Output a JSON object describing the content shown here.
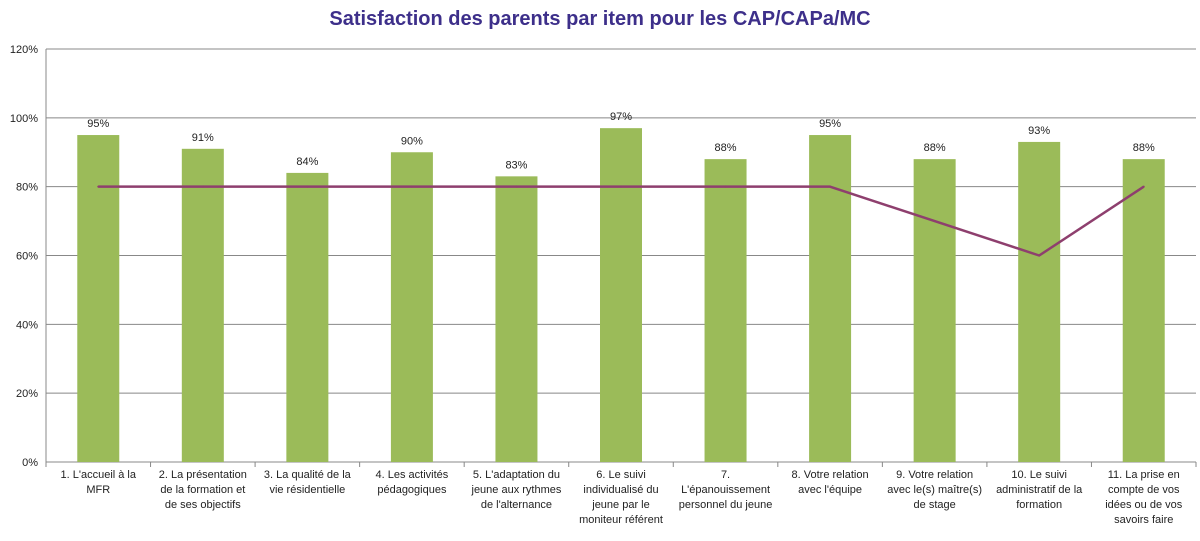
{
  "chart_data": {
    "type": "bar",
    "title": "Satisfaction des parents par item pour les CAP/CAPa/MC",
    "xlabel": "",
    "ylabel": "",
    "ylim": [
      0,
      120
    ],
    "yticks": [
      "0%",
      "20%",
      "40%",
      "60%",
      "80%",
      "100%",
      "120%"
    ],
    "ytick_values": [
      0,
      20,
      40,
      60,
      80,
      100,
      120
    ],
    "grid": true,
    "legend": "none",
    "colors": {
      "bars": "#9bbb59",
      "line": "#8e3f6e",
      "grid": "#888888",
      "title": "#3d2f8a"
    },
    "categories": [
      [
        "1. L'accueil à la",
        "MFR"
      ],
      [
        "2. La présentation",
        "de la formation et",
        "de ses objectifs"
      ],
      [
        "3. La qualité de la",
        "vie résidentielle"
      ],
      [
        "4. Les activités",
        "pédagogiques"
      ],
      [
        "5. L'adaptation du",
        "jeune aux rythmes",
        "de l'alternance"
      ],
      [
        "6. Le suivi",
        "individualisé du",
        "jeune par le",
        "moniteur référent"
      ],
      [
        "7.",
        "L'épanouissement",
        "personnel du jeune"
      ],
      [
        "8. Votre  relation",
        "avec l'équipe"
      ],
      [
        "9.  Votre relation",
        "avec le(s)  maître(s)",
        "de stage"
      ],
      [
        "10. Le suivi",
        "administratif de la",
        "formation"
      ],
      [
        "11. La prise en",
        "compte de vos",
        "idées ou de vos",
        "savoirs faire"
      ]
    ],
    "series": [
      {
        "kind": "bar",
        "values": [
          95,
          91,
          84,
          90,
          83,
          97,
          88,
          95,
          88,
          93,
          88
        ],
        "labels": [
          "95%",
          "91%",
          "84%",
          "90%",
          "83%",
          "97%",
          "88%",
          "95%",
          "88%",
          "93%",
          "88%"
        ]
      },
      {
        "kind": "line",
        "values": [
          80,
          80,
          80,
          80,
          80,
          80,
          80,
          80,
          70,
          60,
          80
        ]
      }
    ]
  }
}
